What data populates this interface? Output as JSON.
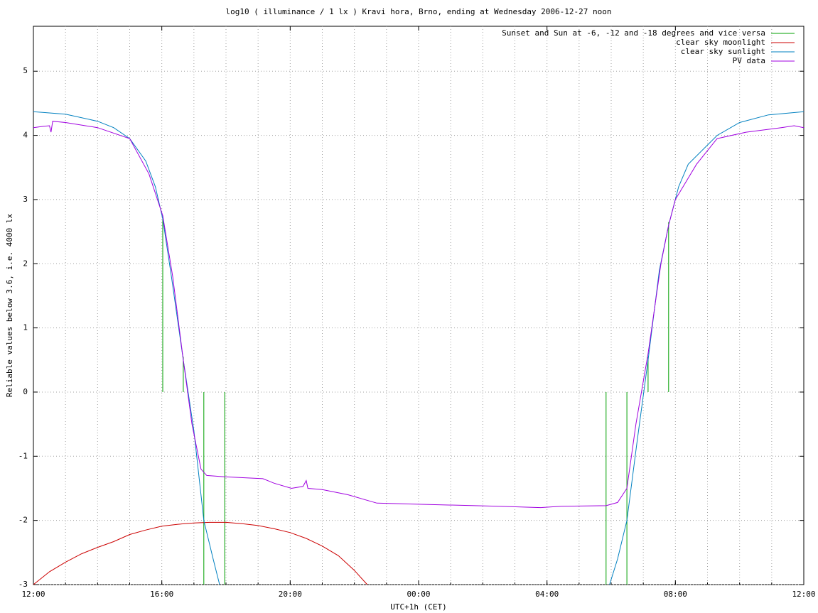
{
  "chart_data": {
    "type": "line",
    "title": "log10 ( illuminance / 1 lx ) Kravi hora, Brno, ending at Wednesday 2006-12-27 noon",
    "x_label": "UTC+1h (CET)",
    "y_label": "Reliable values below 3.6, i.e. 4000 lx",
    "xlim": [
      0,
      24
    ],
    "ylim": [
      -3,
      5.7
    ],
    "xticks": [
      {
        "value": 0,
        "label": "12:00"
      },
      {
        "value": 4,
        "label": "16:00"
      },
      {
        "value": 8,
        "label": "20:00"
      },
      {
        "value": 12,
        "label": "00:00"
      },
      {
        "value": 16,
        "label": "04:00"
      },
      {
        "value": 20,
        "label": "08:00"
      },
      {
        "value": 24,
        "label": "12:00"
      }
    ],
    "xgrid": [
      1,
      2,
      3,
      4,
      5,
      6,
      7,
      8,
      9,
      10,
      11,
      12,
      13,
      14,
      15,
      16,
      17,
      18,
      19,
      20,
      21,
      22,
      23
    ],
    "yticks": [
      -3,
      -2,
      -1,
      0,
      1,
      2,
      3,
      4,
      5
    ],
    "grid": true,
    "legend": "top-right",
    "series": [
      {
        "name": "Sunset and Sun at -6, -12 and -18 degrees and vice versa",
        "color": "#00a000",
        "x": [
          4.03,
          4.03,
          4.03,
          4.67,
          4.67,
          4.67,
          5.31,
          5.31,
          5.31,
          5.96,
          5.96,
          5.96,
          17.84,
          17.84,
          17.84,
          18.49,
          18.49,
          18.49,
          19.15,
          19.15,
          19.15,
          19.79,
          19.79
        ],
        "values": [
          0,
          2.7,
          null,
          0,
          0.55,
          null,
          0,
          -3,
          null,
          0,
          -3,
          null,
          0,
          -3,
          null,
          0,
          -3,
          null,
          0,
          0.55,
          null,
          0,
          2.65
        ]
      },
      {
        "name": "clear sky moonlight",
        "color": "#cc0000",
        "x": [
          0,
          0.25,
          0.5,
          1,
          1.5,
          2,
          2.5,
          3,
          3.5,
          4,
          4.5,
          5,
          5.5,
          6,
          6.5,
          7,
          7.5,
          8,
          8.5,
          9,
          9.5,
          10,
          10.4
        ],
        "values": [
          -3,
          -2.9,
          -2.8,
          -2.65,
          -2.52,
          -2.42,
          -2.33,
          -2.22,
          -2.15,
          -2.09,
          -2.06,
          -2.04,
          -2.03,
          -2.03,
          -2.05,
          -2.08,
          -2.13,
          -2.19,
          -2.28,
          -2.4,
          -2.55,
          -2.78,
          -3
        ]
      },
      {
        "name": "clear sky sunlight",
        "color": "#0080c0",
        "x": [
          0,
          1,
          2,
          2.5,
          3,
          3.5,
          3.8,
          4.03,
          4.3,
          4.67,
          5,
          5.31,
          5.6,
          5.8,
          12,
          17.95,
          18.2,
          18.49,
          18.8,
          19.15,
          19.5,
          19.79,
          20.1,
          20.4,
          21.3,
          22,
          22.9,
          24
        ],
        "values": [
          4.37,
          4.33,
          4.22,
          4.12,
          3.95,
          3.6,
          3.2,
          2.7,
          1.8,
          0.5,
          -0.6,
          -2.0,
          -2.6,
          -3,
          null,
          -3,
          -2.6,
          -2.0,
          -0.8,
          0.5,
          1.9,
          2.6,
          3.2,
          3.55,
          4.0,
          4.2,
          4.32,
          4.37
        ]
      },
      {
        "name": "PV data",
        "color": "#a000e0",
        "x": [
          0,
          0.3,
          0.5,
          0.55,
          0.6,
          1,
          2,
          3,
          3.6,
          4.03,
          4.34,
          4.67,
          4.94,
          5.22,
          5.4,
          5.96,
          7.15,
          7.5,
          8.04,
          8.4,
          8.5,
          8.55,
          9.0,
          9.8,
          10.7,
          12.2,
          14.5,
          15.8,
          16.45,
          17.84,
          18.2,
          18.49,
          18.77,
          19.15,
          19.55,
          19.79,
          20.0,
          20.66,
          21.3,
          22.2,
          23.3,
          23.7,
          24
        ],
        "values": [
          4.12,
          4.14,
          4.15,
          4.05,
          4.22,
          4.2,
          4.12,
          3.95,
          3.4,
          2.75,
          1.8,
          0.5,
          -0.5,
          -1.2,
          -1.3,
          -1.32,
          -1.35,
          -1.42,
          -1.5,
          -1.47,
          -1.38,
          -1.5,
          -1.52,
          -1.6,
          -1.73,
          -1.75,
          -1.78,
          -1.8,
          -1.78,
          -1.77,
          -1.72,
          -1.5,
          -0.5,
          0.6,
          2.0,
          2.6,
          3.0,
          3.55,
          3.95,
          4.05,
          4.12,
          4.15,
          4.12
        ]
      }
    ]
  }
}
